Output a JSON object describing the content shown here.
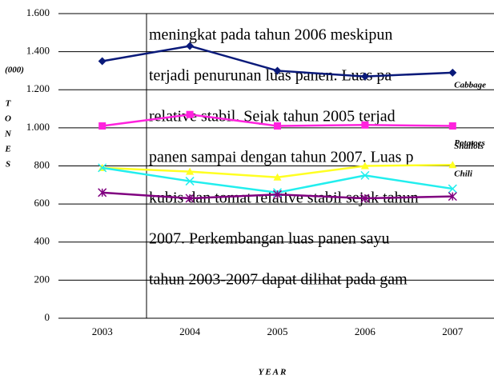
{
  "chart_data": {
    "type": "line",
    "categories": [
      "2003",
      "2004",
      "2005",
      "2006",
      "2007"
    ],
    "series": [
      {
        "name": "Cabbage",
        "color": "#0a1a7a",
        "marker": "diamond",
        "values": [
          1350,
          1430,
          1300,
          1270,
          1290
        ]
      },
      {
        "name": "Potatoes",
        "color": "#ff22dd",
        "marker": "square",
        "values": [
          1010,
          1070,
          1010,
          1015,
          1010
        ]
      },
      {
        "name": "Shallots",
        "color": "#ffff22",
        "marker": "triangle",
        "values": [
          790,
          770,
          740,
          800,
          805
        ]
      },
      {
        "name": "Chili",
        "color": "#22eeee",
        "marker": "x",
        "values": [
          790,
          720,
          660,
          750,
          680
        ]
      },
      {
        "color": "#800080",
        "marker": "star",
        "values": [
          660,
          630,
          650,
          630,
          640
        ]
      }
    ],
    "ylim": [
      0,
      1600
    ],
    "yticks": [
      0,
      200,
      400,
      600,
      800,
      {
        "value": 1000,
        "label": "1.000"
      },
      {
        "value": 1200,
        "label": "1.200"
      },
      {
        "value": 1400,
        "label": "1.400"
      },
      {
        "value": 1600,
        "label": "1.600"
      }
    ],
    "grid": true,
    "unit_label": "(000)",
    "y_label_letters": [
      "T",
      "O",
      "N",
      "E",
      "S"
    ],
    "x_label": "YEAR"
  },
  "overlay_text": {
    "lines": [
      "meningkat pada tahun 2006 meskipun",
      "terjadi penurunan luas panen. Luas pa",
      "relative stabil.  Sejak tahun 2005 terjad",
      "panen sampai dengan tahun 2007. Luas p",
      "kubis dan tomat relative stabil sejak tahun",
      "2007.  Perkembangan  luas panen sayu",
      "tahun 2003-2007 dapat dilihat pada gam"
    ]
  }
}
